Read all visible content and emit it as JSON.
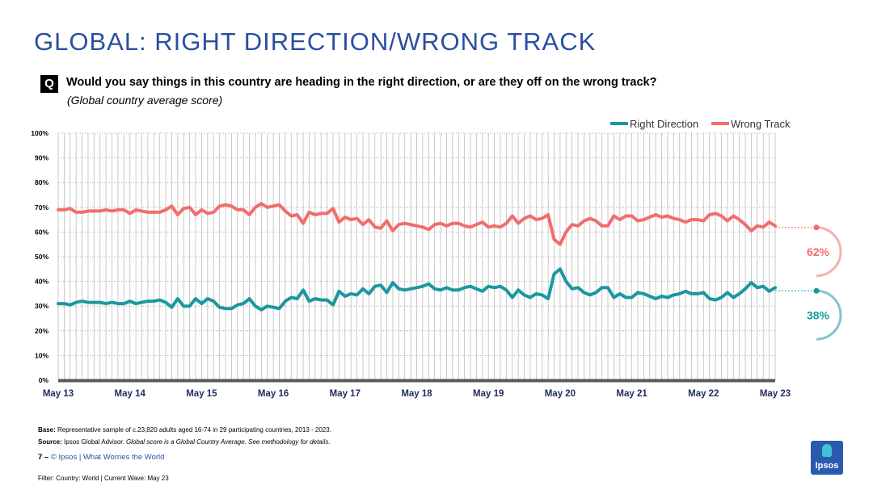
{
  "header": {
    "title": "GLOBAL: RIGHT DIRECTION/WRONG TRACK",
    "q_badge": "Q",
    "question": "Would you say things in this country are heading in the right direction, or are they off on the wrong track?",
    "subtitle": "(Global country average score)"
  },
  "colors": {
    "right": "#1a98a0",
    "wrong": "#f26d6d",
    "title": "#2b4fa0"
  },
  "chart_data": {
    "type": "line",
    "title": "",
    "xlabel": "",
    "ylabel": "",
    "ylim": [
      0,
      100
    ],
    "yticks": [
      "0%",
      "10%",
      "20%",
      "30%",
      "40%",
      "50%",
      "60%",
      "70%",
      "80%",
      "90%",
      "100%"
    ],
    "xticks": [
      "May 13",
      "May 14",
      "May 15",
      "May 16",
      "May 17",
      "May 18",
      "May 19",
      "May 20",
      "May 21",
      "May 22",
      "May 23"
    ],
    "grid": true,
    "legend": "top-right",
    "series": [
      {
        "name": "Right Direction",
        "color": "#1a98a0",
        "end_label": "38%",
        "values": [
          31,
          31,
          30.5,
          31.5,
          32,
          31.5,
          31.5,
          31.5,
          31,
          31.5,
          31,
          31,
          32,
          31,
          31.5,
          32,
          32,
          32.5,
          31.5,
          29.5,
          33,
          30,
          30,
          33,
          31,
          33,
          32,
          29.5,
          29,
          29,
          30.5,
          31,
          33,
          30,
          28.5,
          30,
          29.5,
          29,
          32,
          33.5,
          33,
          36.5,
          32,
          33,
          32.5,
          32.5,
          30.5,
          36,
          34,
          35,
          34.5,
          37,
          35,
          38,
          38.5,
          35.5,
          39.5,
          37,
          36.5,
          37,
          37.5,
          38,
          39,
          37,
          36.5,
          37.5,
          36.5,
          36.5,
          37.5,
          38,
          37,
          36,
          38,
          37.5,
          38,
          36.5,
          33.5,
          36.5,
          34.5,
          33.5,
          35,
          34.5,
          33,
          43,
          45,
          40,
          37,
          37.5,
          35.5,
          34.5,
          35.5,
          37.5,
          37.5,
          33.5,
          35,
          33.5,
          33.5,
          35.5,
          35,
          34,
          33,
          34,
          33.5,
          34.5,
          35,
          36,
          35,
          35,
          35.5,
          33,
          32.5,
          33.5,
          35.5,
          33.5,
          35,
          37,
          39.5,
          37.5,
          38,
          36,
          37.5
        ]
      },
      {
        "name": "Wrong Track",
        "color": "#f26d6d",
        "end_label": "62%",
        "values": [
          69,
          69,
          69.5,
          68,
          68,
          68.5,
          68.5,
          68.5,
          69,
          68.5,
          69,
          69,
          67.5,
          69,
          68.5,
          68,
          68,
          68,
          69,
          70.5,
          67,
          69.5,
          70,
          67,
          69,
          67.5,
          68,
          70.5,
          71,
          70.5,
          69,
          69,
          67,
          70,
          71.5,
          70,
          70.5,
          71,
          68.5,
          66.5,
          67,
          63.5,
          68,
          67,
          67.5,
          67.5,
          69.5,
          64,
          66,
          65,
          65.5,
          63,
          65,
          62,
          61.5,
          64.5,
          60.5,
          63,
          63.5,
          63,
          62.5,
          62,
          61,
          63,
          63.5,
          62.5,
          63.5,
          63.5,
          62.5,
          62,
          63,
          64,
          62,
          62.5,
          62,
          63.5,
          66.5,
          63.5,
          65.5,
          66.5,
          65,
          65.5,
          67,
          57,
          55,
          60,
          63,
          62.5,
          64.5,
          65.5,
          64.5,
          62.5,
          62.5,
          66.5,
          65,
          66.5,
          66.5,
          64.5,
          65,
          66,
          67,
          66,
          66.5,
          65.5,
          65,
          64,
          65,
          65,
          64.5,
          67,
          67.5,
          66.5,
          64.5,
          66.5,
          65,
          63,
          60.5,
          62.5,
          62,
          64,
          62.5
        ]
      }
    ]
  },
  "footer": {
    "base_label": "Base:",
    "base_text": " Representative sample of c.23,820 adults aged 16-74 in 29 participating countries, 2013 - 2023.",
    "source_label": "Source:",
    "source_text": " Ipsos Global Advisor. ",
    "source_italic": "Global score is a Global Country Average. See methodology for details.",
    "page_number": "7",
    "page_sep": " – ",
    "page_text": " © Ipsos | What Worries the World",
    "filter": "Filter: Country: World | Current Wave: May 23",
    "logo_text": "Ipsos"
  }
}
